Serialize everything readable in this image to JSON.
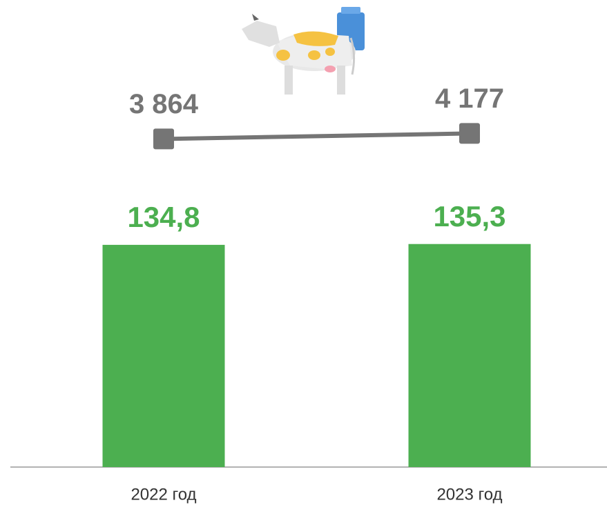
{
  "chart_data": {
    "type": "bar_line",
    "categories": [
      "2022 год",
      "2023 год"
    ],
    "series": [
      {
        "type": "bar",
        "color": "#4caf50",
        "values": [
          134.8,
          135.3
        ],
        "value_labels": [
          "134,8",
          "135,3"
        ]
      },
      {
        "type": "line",
        "axis": "y2",
        "color": "#757575",
        "values": [
          3864,
          4177
        ],
        "value_labels": [
          "3 864",
          "4 177"
        ]
      }
    ],
    "ylim": [
      0,
      208
    ],
    "y2lim": [
      -14700,
      4700
    ]
  }
}
